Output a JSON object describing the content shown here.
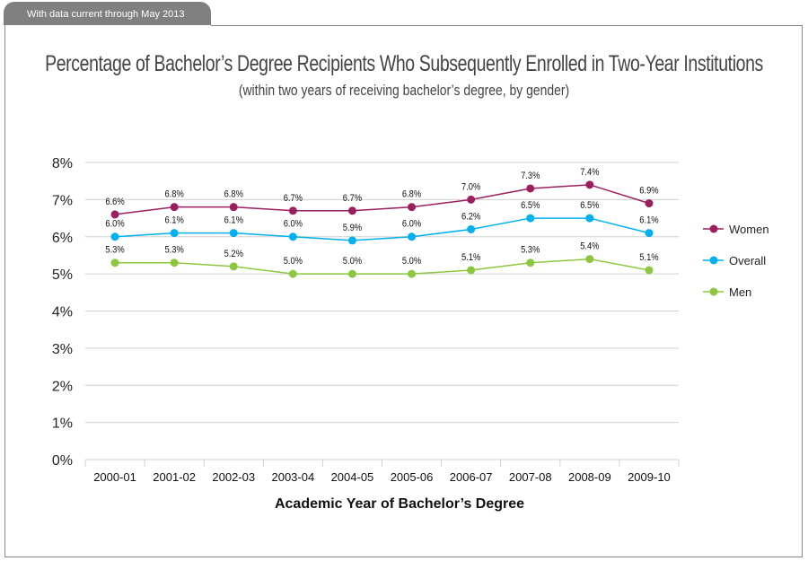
{
  "header": {
    "tab_label": "With data current through May 2013"
  },
  "chart_data": {
    "type": "line",
    "title": "Percentage of Bachelor’s Degree Recipients Who Subsequently Enrolled in Two-Year Institutions",
    "subtitle": "(within two years of receiving bachelor’s degree, by gender)",
    "xlabel": "Academic Year of Bachelor’s Degree",
    "ylabel": "",
    "ylim": [
      0,
      8
    ],
    "yticks": [
      "0%",
      "1%",
      "2%",
      "3%",
      "4%",
      "5%",
      "6%",
      "7%",
      "8%"
    ],
    "grid": "horizontal",
    "legend": "right",
    "categories": [
      "2000-01",
      "2001-02",
      "2002-03",
      "2003-04",
      "2004-05",
      "2005-06",
      "2006-07",
      "2007-08",
      "2008-09",
      "2009-10"
    ],
    "series": [
      {
        "name": "Women",
        "color": "#9b1f5e",
        "values": [
          6.6,
          6.8,
          6.8,
          6.7,
          6.7,
          6.8,
          7.0,
          7.3,
          7.4,
          6.9
        ]
      },
      {
        "name": "Overall",
        "color": "#00b0f0",
        "values": [
          6.0,
          6.1,
          6.1,
          6.0,
          5.9,
          6.0,
          6.2,
          6.5,
          6.5,
          6.1
        ]
      },
      {
        "name": "Men",
        "color": "#8dc63f",
        "values": [
          5.3,
          5.3,
          5.2,
          5.0,
          5.0,
          5.0,
          5.1,
          5.3,
          5.4,
          5.1
        ]
      }
    ]
  }
}
